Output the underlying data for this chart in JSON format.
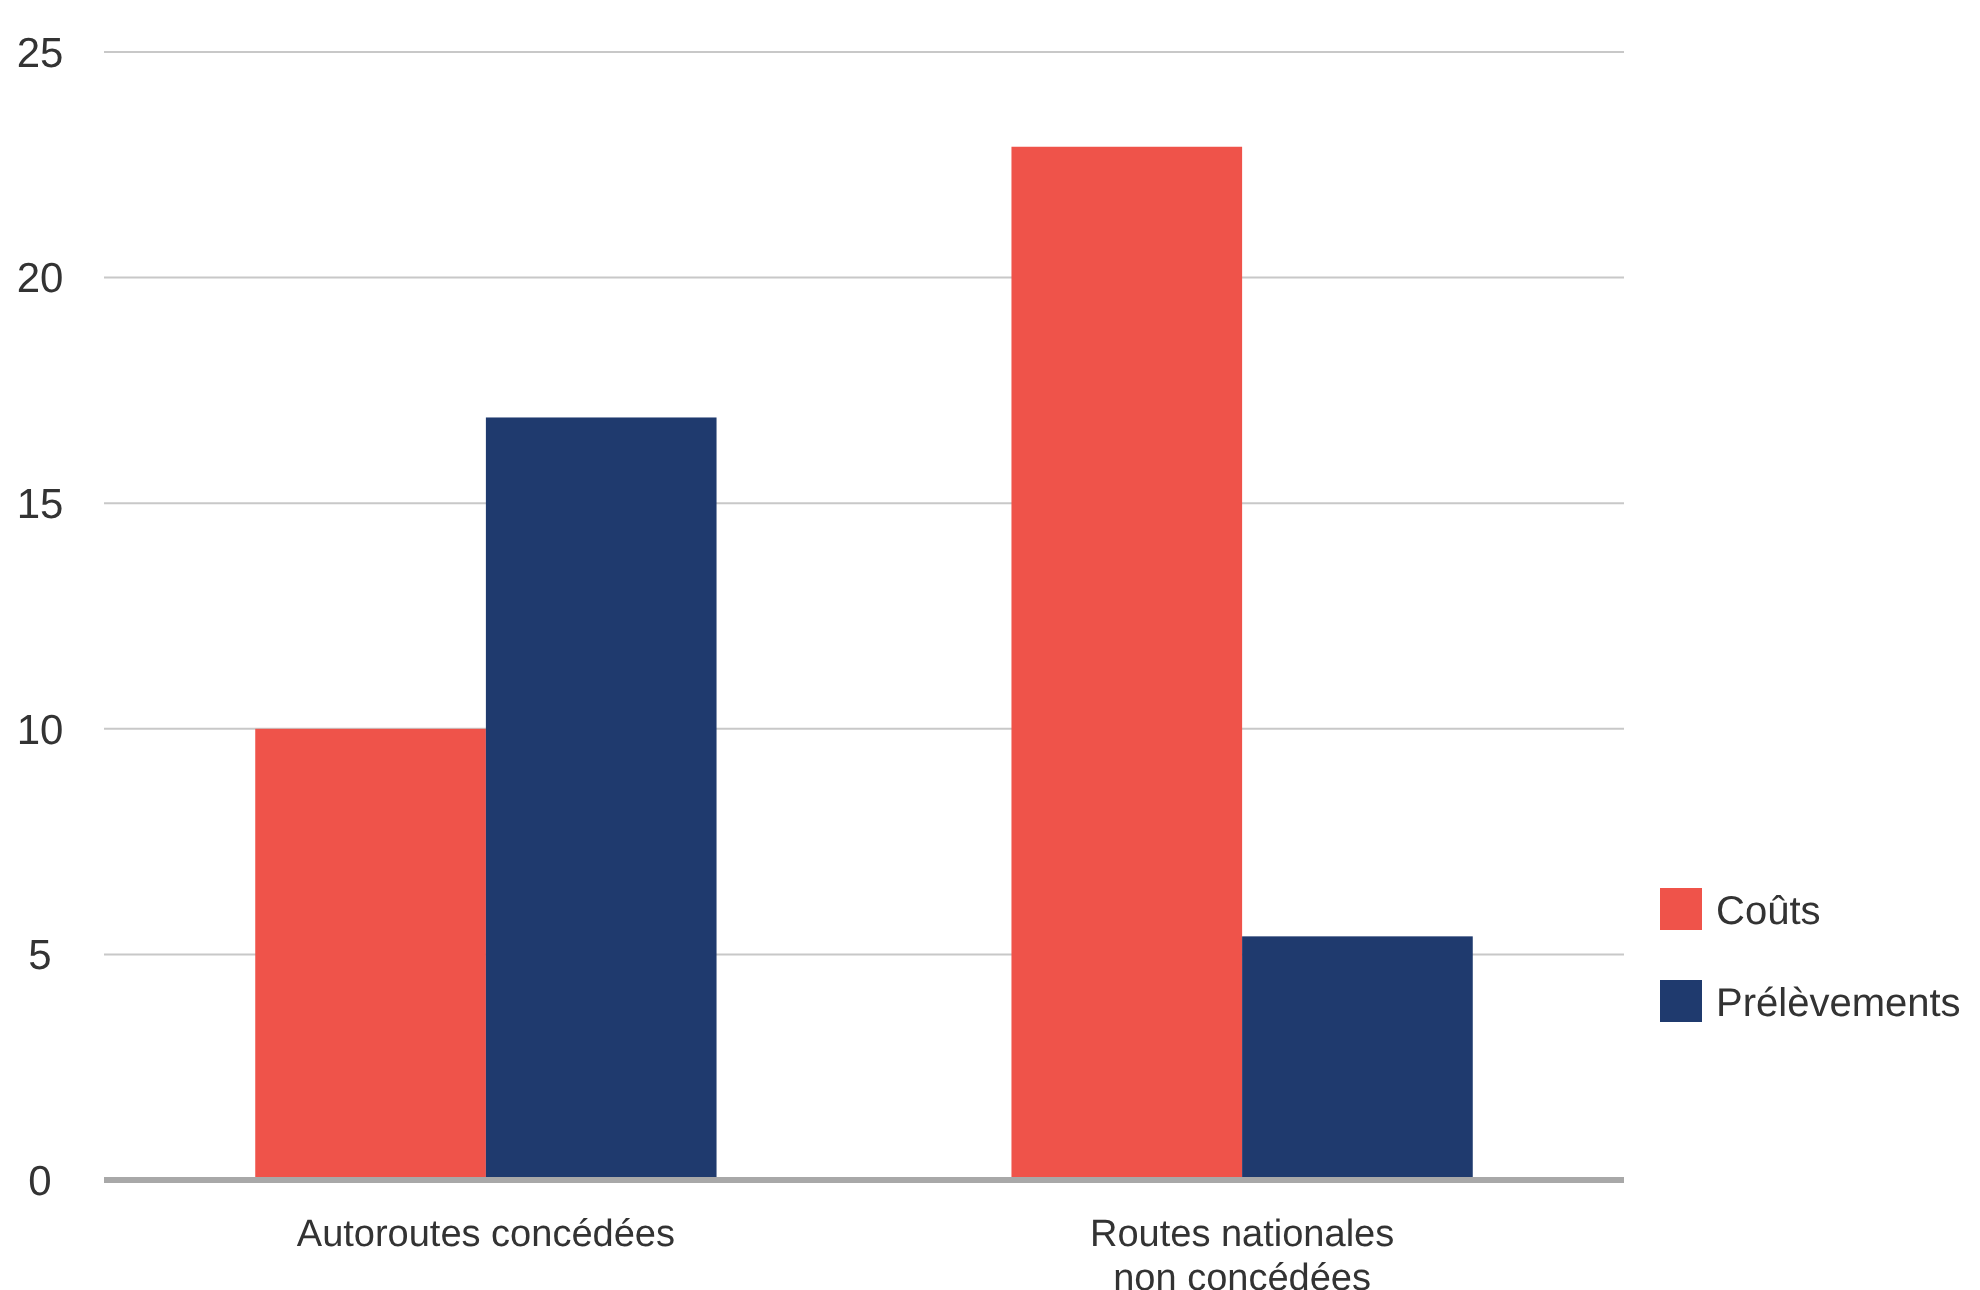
{
  "chart_data": {
    "type": "bar",
    "categories": [
      "Autoroutes concédées",
      "Routes nationales\nnon concédées"
    ],
    "series": [
      {
        "name": "Coûts",
        "color": "#ef534a",
        "values": [
          10,
          22.9
        ]
      },
      {
        "name": "Prélèvements",
        "color": "#1f3a6e",
        "values": [
          16.9,
          5.4
        ]
      }
    ],
    "ylim": [
      0,
      25
    ],
    "yticks": [
      0,
      5,
      10,
      15,
      20,
      25
    ],
    "grid": "y",
    "legend": "right"
  }
}
